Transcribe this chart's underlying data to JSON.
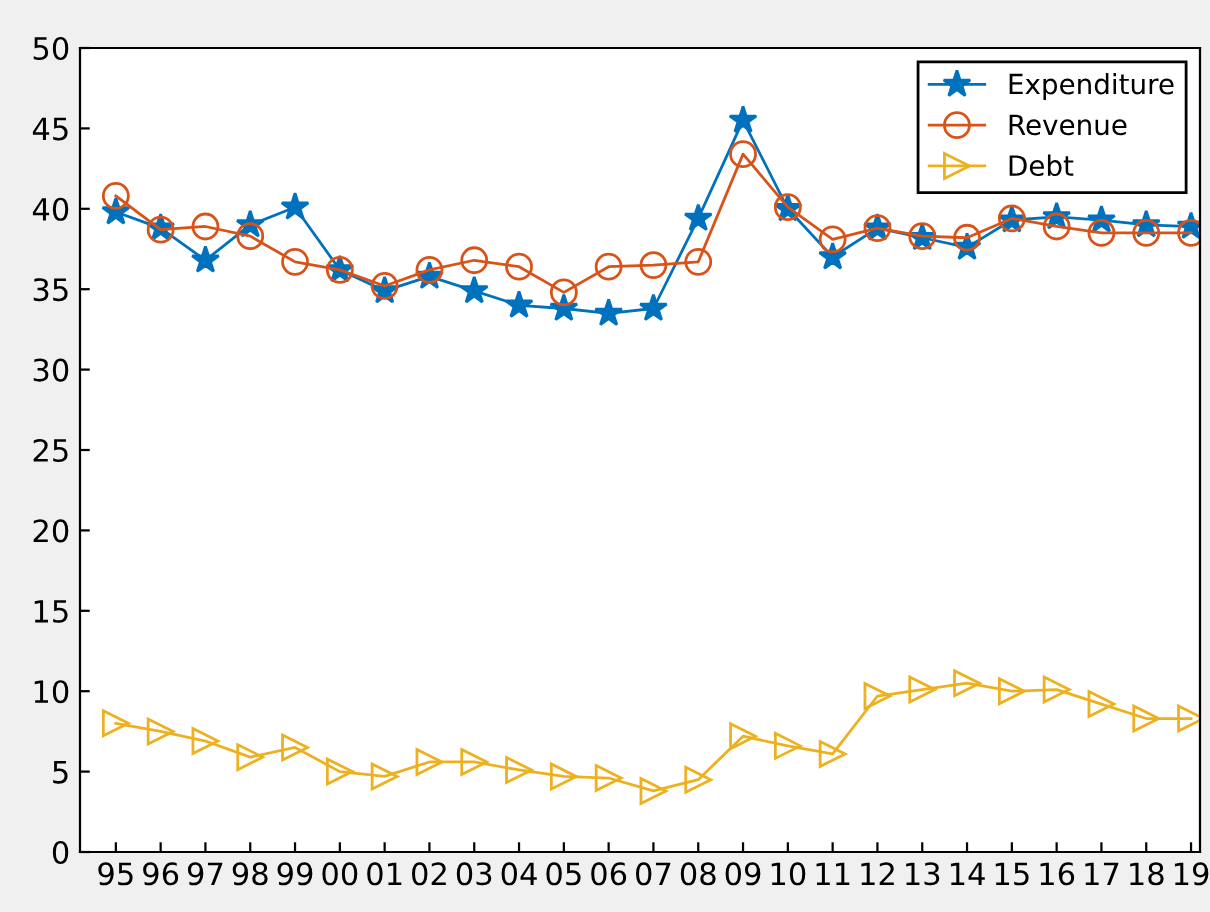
{
  "chart_data": {
    "type": "line",
    "categories": [
      "95",
      "96",
      "97",
      "98",
      "99",
      "00",
      "01",
      "02",
      "03",
      "04",
      "05",
      "06",
      "07",
      "08",
      "09",
      "10",
      "11",
      "12",
      "13",
      "14",
      "15",
      "16",
      "17",
      "18",
      "19"
    ],
    "series": [
      {
        "name": "Expenditure",
        "color": "#0072bd",
        "marker": "star",
        "values": [
          39.8,
          38.8,
          36.8,
          39.0,
          40.1,
          36.2,
          34.9,
          35.8,
          34.9,
          34.0,
          33.8,
          33.5,
          33.8,
          39.4,
          45.5,
          40.0,
          37.0,
          38.8,
          38.2,
          37.6,
          39.3,
          39.5,
          39.3,
          39.0,
          38.9
        ]
      },
      {
        "name": "Revenue",
        "color": "#d95319",
        "marker": "circle",
        "values": [
          40.8,
          38.7,
          38.9,
          38.3,
          36.7,
          36.2,
          35.2,
          36.2,
          36.8,
          36.4,
          34.8,
          36.4,
          36.5,
          36.7,
          43.4,
          40.1,
          38.1,
          38.8,
          38.3,
          38.2,
          39.4,
          38.9,
          38.5,
          38.5,
          38.5
        ]
      },
      {
        "name": "Debt",
        "color": "#edb120",
        "marker": "triangle",
        "values": [
          8.0,
          7.5,
          6.9,
          5.9,
          6.5,
          5.0,
          4.7,
          5.6,
          5.6,
          5.1,
          4.7,
          4.6,
          3.8,
          4.5,
          7.2,
          6.6,
          6.1,
          9.7,
          10.1,
          10.5,
          10.0,
          10.1,
          9.2,
          8.3,
          8.3
        ]
      }
    ],
    "ylim": [
      0,
      50
    ],
    "yticks": [
      0,
      5,
      10,
      15,
      20,
      25,
      30,
      35,
      40,
      45,
      50
    ],
    "grid": false,
    "legend": "top right",
    "line_style": "solid"
  }
}
